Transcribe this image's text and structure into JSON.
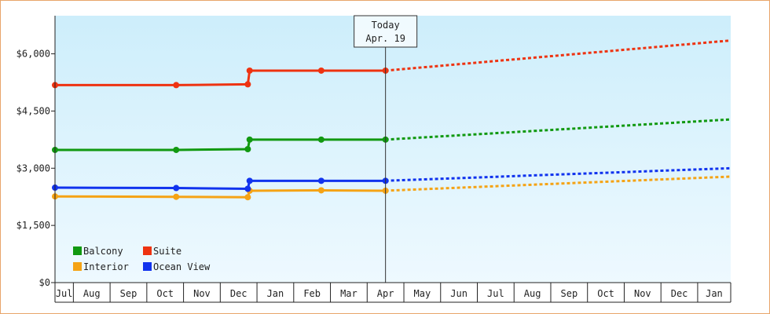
{
  "chart_data": {
    "type": "line",
    "title": "",
    "xlabel": "",
    "ylabel": "",
    "ylim": [
      0,
      7000
    ],
    "y_ticks": [
      {
        "value": 0,
        "label": "$0"
      },
      {
        "value": 1500,
        "label": "$1,500"
      },
      {
        "value": 3000,
        "label": "$3,000"
      },
      {
        "value": 4500,
        "label": "$4,500"
      },
      {
        "value": 6000,
        "label": "$6,000"
      }
    ],
    "x_months": [
      "Jul",
      "Aug",
      "Sep",
      "Oct",
      "Nov",
      "Dec",
      "Jan",
      "Feb",
      "Mar",
      "Apr",
      "May",
      "Jun",
      "Jul",
      "Aug",
      "Sep",
      "Oct",
      "Nov",
      "Dec",
      "Jan"
    ],
    "xlim": [
      0,
      18.4
    ],
    "grid": false,
    "background_gradient": [
      "#cdeefb",
      "#eef9ff"
    ],
    "today_marker": {
      "x": 9.0,
      "line1": "Today",
      "line2": "Apr. 19"
    },
    "legend_position": "bottom-left",
    "series": [
      {
        "name": "Balcony",
        "color": "#119911",
        "points": [
          [
            0,
            3480
          ],
          [
            3.3,
            3480
          ],
          [
            5.25,
            3500
          ],
          [
            5.3,
            3750
          ],
          [
            7.25,
            3750
          ],
          [
            9.0,
            3750
          ]
        ],
        "projection": [
          [
            9.0,
            3750
          ],
          [
            18.4,
            4280
          ]
        ]
      },
      {
        "name": "Suite",
        "color": "#ee3311",
        "points": [
          [
            0,
            5180
          ],
          [
            3.3,
            5180
          ],
          [
            5.25,
            5200
          ],
          [
            5.3,
            5560
          ],
          [
            7.25,
            5560
          ],
          [
            9.0,
            5560
          ]
        ],
        "projection": [
          [
            9.0,
            5560
          ],
          [
            18.4,
            6350
          ]
        ]
      },
      {
        "name": "Interior",
        "color": "#f5a315",
        "points": [
          [
            0,
            2260
          ],
          [
            3.3,
            2250
          ],
          [
            5.25,
            2240
          ],
          [
            5.3,
            2410
          ],
          [
            7.25,
            2420
          ],
          [
            9.0,
            2410
          ]
        ],
        "projection": [
          [
            9.0,
            2410
          ],
          [
            18.4,
            2780
          ]
        ]
      },
      {
        "name": "Ocean View",
        "color": "#1133ee",
        "points": [
          [
            0,
            2490
          ],
          [
            3.3,
            2480
          ],
          [
            5.25,
            2460
          ],
          [
            5.3,
            2670
          ],
          [
            7.25,
            2670
          ],
          [
            9.0,
            2670
          ]
        ],
        "projection": [
          [
            9.0,
            2670
          ],
          [
            18.4,
            3000
          ]
        ]
      }
    ],
    "legend_order": [
      "Balcony",
      "Suite",
      "Interior",
      "Ocean View"
    ]
  }
}
